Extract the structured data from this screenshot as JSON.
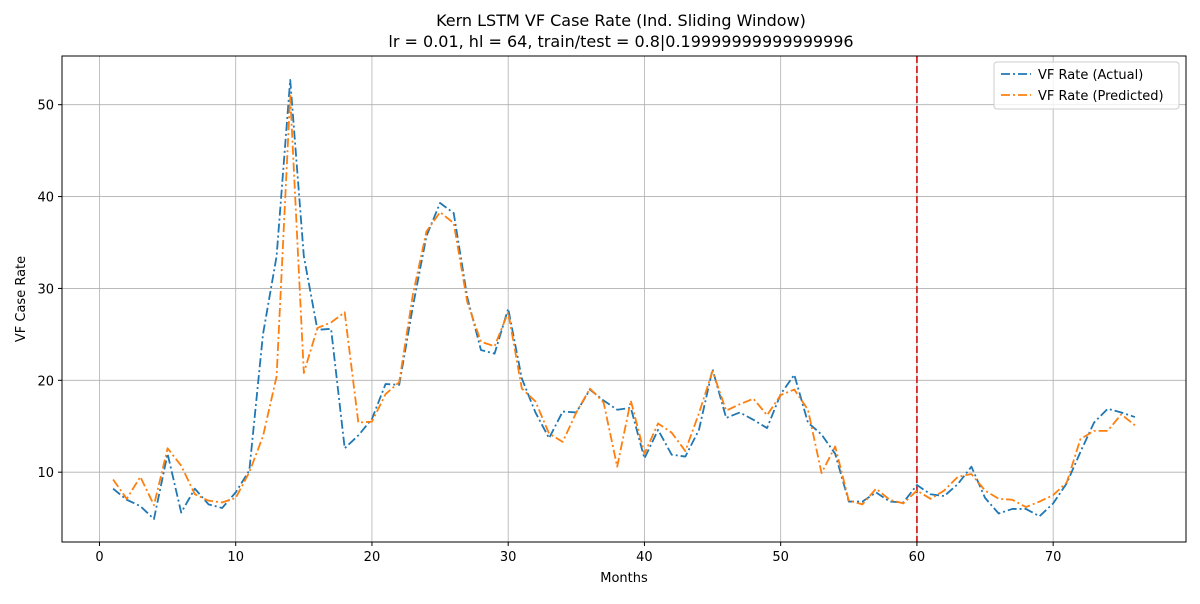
{
  "chart_data": {
    "type": "line",
    "title": "Kern LSTM VF Case Rate (Ind. Sliding Window)",
    "subtitle": "lr = 0.01, hl = 64, train/test = 0.8|0.19999999999999996",
    "xlabel": "Months",
    "ylabel": "VF Case Rate",
    "xlim": [
      -2.75,
      79.75
    ],
    "ylim": [
      2.4,
      55.3
    ],
    "xticks": [
      0,
      10,
      20,
      30,
      40,
      50,
      60,
      70
    ],
    "yticks": [
      10,
      20,
      30,
      40,
      50
    ],
    "grid": true,
    "legend_position": "top-right",
    "split_line": {
      "x": 60,
      "color": "#d62728",
      "style": "dashed"
    },
    "x": [
      1,
      2,
      3,
      4,
      5,
      6,
      7,
      8,
      9,
      10,
      11,
      12,
      13,
      14,
      15,
      16,
      17,
      18,
      19,
      20,
      21,
      22,
      23,
      24,
      25,
      26,
      27,
      28,
      29,
      30,
      31,
      32,
      33,
      34,
      35,
      36,
      37,
      38,
      39,
      40,
      41,
      42,
      43,
      44,
      45,
      46,
      47,
      48,
      49,
      50,
      51,
      52,
      53,
      54,
      55,
      56,
      57,
      58,
      59,
      60,
      61,
      62,
      63,
      64,
      65,
      66,
      67,
      68,
      69,
      70,
      71,
      72,
      73,
      74,
      75,
      76
    ],
    "series": [
      {
        "name": "VF Rate (Actual)",
        "color": "#1f77b4",
        "style": "dashdot",
        "values": [
          8.2,
          7.0,
          6.3,
          4.9,
          12.0,
          5.6,
          8.2,
          6.5,
          6.1,
          7.8,
          10.2,
          25.0,
          33.5,
          52.7,
          33.5,
          25.5,
          25.6,
          12.6,
          14.0,
          15.8,
          19.6,
          19.5,
          28.0,
          35.7,
          39.3,
          38.2,
          29.0,
          23.3,
          22.9,
          27.8,
          20.2,
          16.5,
          13.7,
          16.6,
          16.5,
          19.0,
          17.8,
          16.8,
          17.0,
          11.5,
          14.6,
          11.9,
          11.7,
          14.6,
          21.2,
          15.9,
          16.5,
          15.7,
          14.8,
          18.5,
          20.6,
          15.4,
          14.1,
          12.0,
          6.8,
          6.8,
          7.8,
          6.8,
          6.7,
          8.6,
          7.6,
          7.4,
          8.7,
          10.6,
          7.2,
          5.5,
          6.0,
          6.0,
          5.2,
          6.6,
          8.8,
          12.2,
          15.4,
          16.9,
          16.5,
          16.0
        ]
      },
      {
        "name": "VF Rate (Predicted)",
        "color": "#ff7f0e",
        "style": "dashdot",
        "values": [
          9.2,
          7.1,
          9.5,
          6.4,
          12.6,
          10.7,
          7.6,
          6.9,
          6.7,
          7.2,
          10.0,
          13.9,
          20.4,
          51.0,
          20.8,
          25.7,
          26.3,
          27.4,
          15.4,
          15.5,
          18.5,
          19.8,
          29.3,
          36.2,
          38.3,
          37.1,
          28.5,
          24.2,
          23.7,
          27.4,
          19.1,
          17.7,
          14.2,
          13.3,
          16.5,
          19.1,
          17.6,
          10.6,
          17.8,
          12.0,
          15.3,
          14.3,
          12.3,
          16.4,
          21.0,
          16.7,
          17.4,
          18.0,
          16.2,
          18.4,
          19.0,
          16.8,
          9.9,
          12.8,
          6.9,
          6.5,
          8.2,
          7.0,
          6.6,
          8.0,
          7.1,
          8.0,
          9.5,
          9.8,
          8.0,
          7.1,
          7.0,
          6.2,
          6.8,
          7.5,
          8.9,
          13.6,
          14.5,
          14.5,
          16.3,
          15.1
        ]
      }
    ]
  }
}
